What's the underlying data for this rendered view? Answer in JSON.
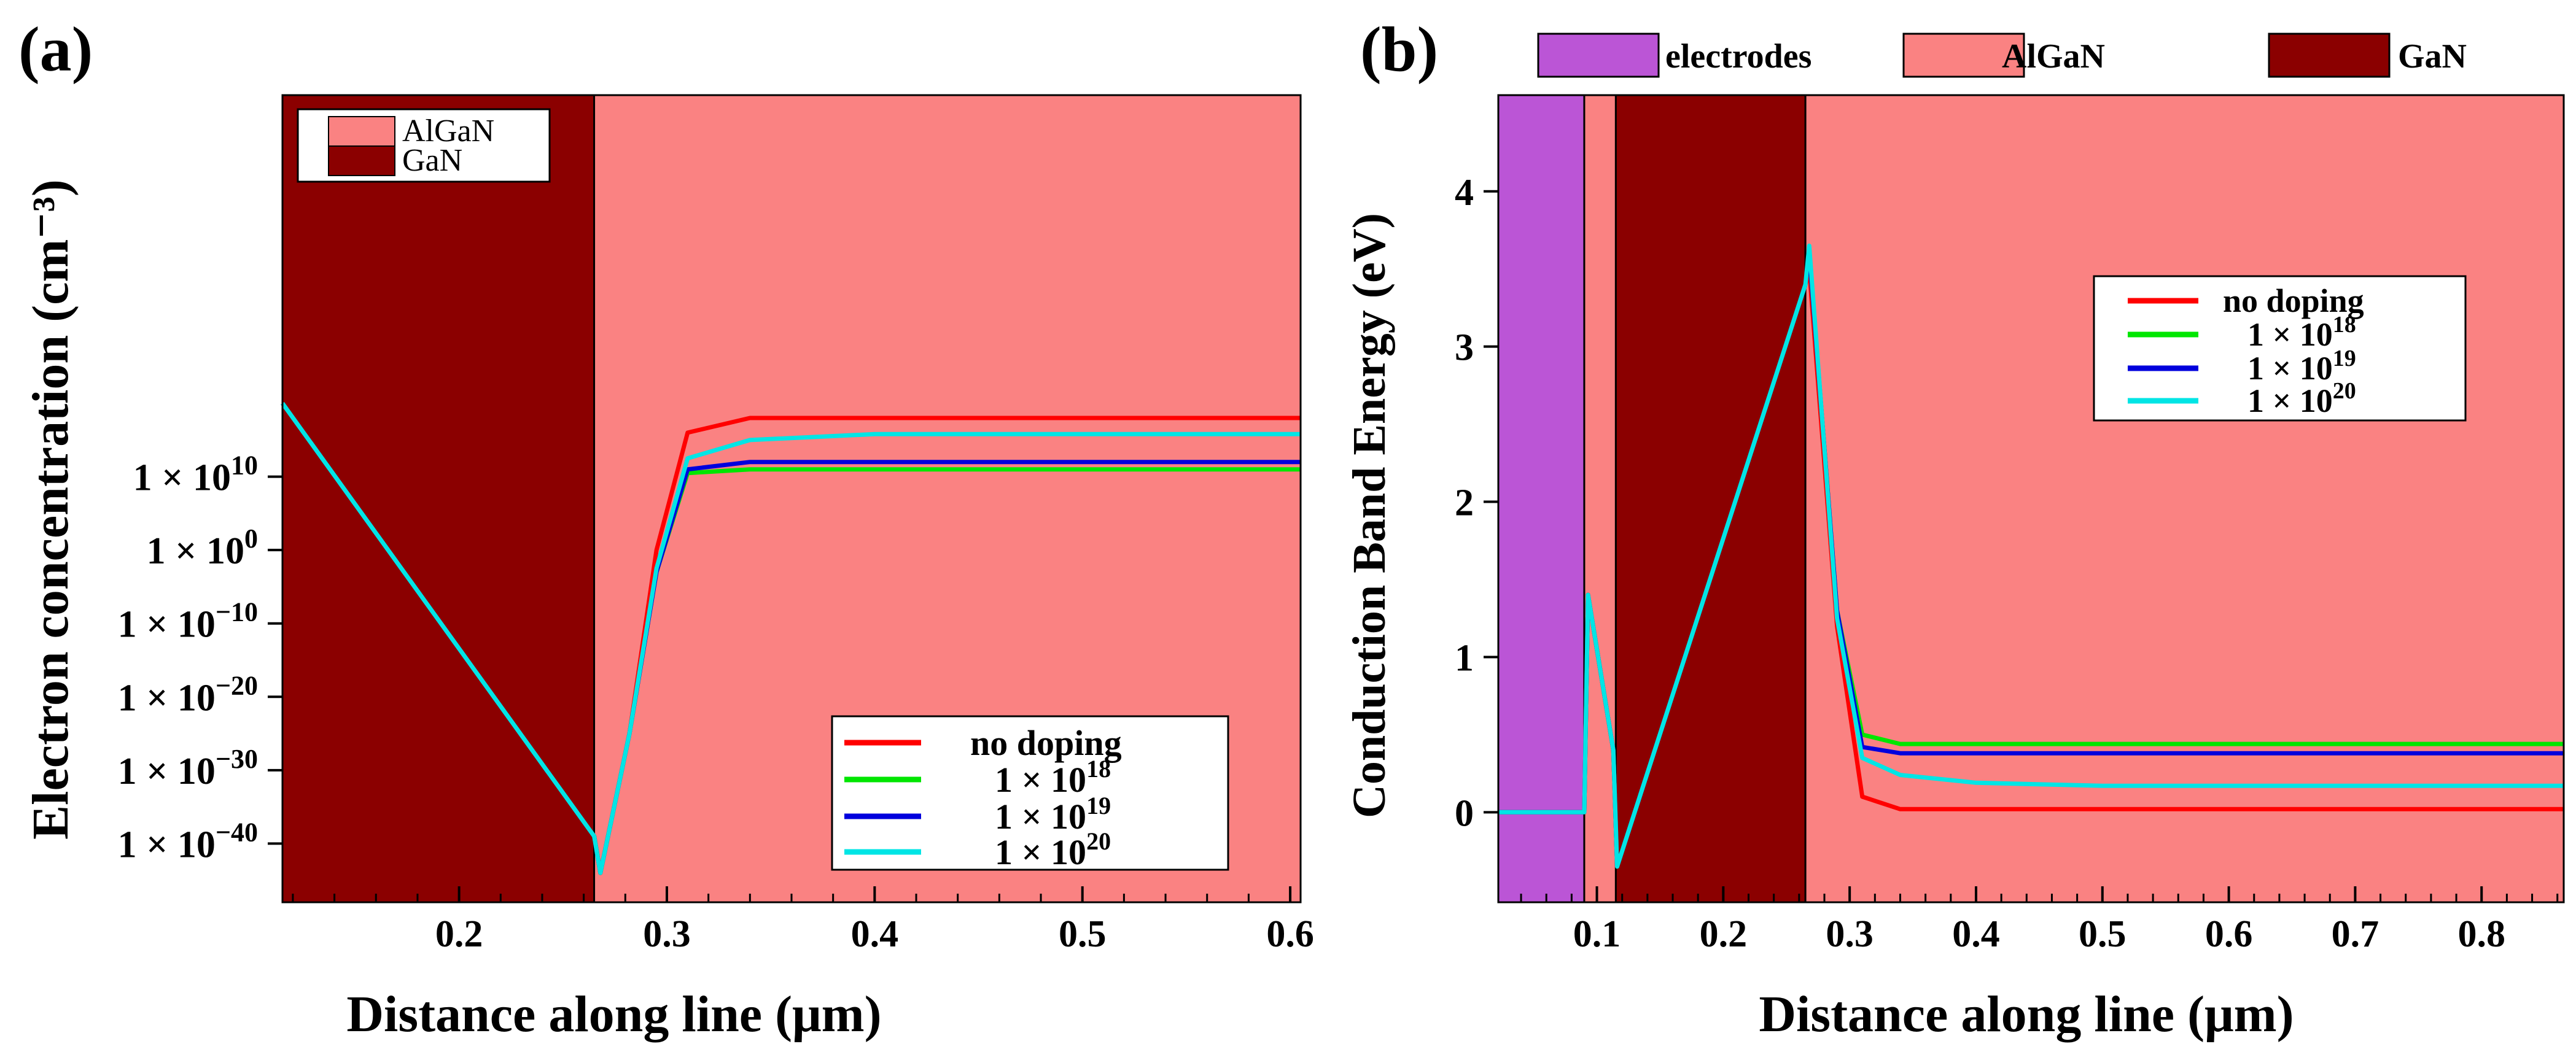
{
  "chart_data": [
    {
      "panel": "(a)",
      "type": "line",
      "title": "",
      "xlabel": "Distance along line (μm)",
      "ylabel": "Electron concentration (cm⁻³)",
      "yscale": "log",
      "xlim": [
        0.115,
        0.605
      ],
      "ylim": [
        -48,
        62
      ],
      "xticks": [
        0.2,
        0.3,
        0.4,
        0.5,
        0.6
      ],
      "xtick_labels": [
        "0.2",
        "0.3",
        "0.4",
        "0.5",
        "0.6"
      ],
      "yticks": [
        10,
        0,
        -10,
        -20,
        -30,
        -40
      ],
      "ytick_labels": [
        {
          "base": "1 × 10",
          "exp": "10"
        },
        {
          "base": "1 × 10",
          "exp": "0"
        },
        {
          "base": "1 × 10",
          "exp": "−10"
        },
        {
          "base": "1 × 10",
          "exp": "−20"
        },
        {
          "base": "1 × 10",
          "exp": "−30"
        },
        {
          "base": "1 × 10",
          "exp": "−40"
        }
      ],
      "regions": [
        {
          "material": "GaN",
          "x": [
            0.115,
            0.265
          ],
          "color": "#8b0000"
        },
        {
          "material": "AlGaN",
          "x": [
            0.265,
            0.605
          ],
          "color": "#fa8282"
        }
      ],
      "region_legend": [
        {
          "label": "AlGaN",
          "color": "#fa8282"
        },
        {
          "label": "GaN",
          "color": "#8b0000"
        }
      ],
      "legend": [
        {
          "label": "no doping",
          "sup": ""
        },
        {
          "label": "1 × 10",
          "sup": "18"
        },
        {
          "label": "1 × 10",
          "sup": "19"
        },
        {
          "label": "1 × 10",
          "sup": "20"
        }
      ],
      "legend_position": "lower-right",
      "x": [
        0.115,
        0.265,
        0.268,
        0.282,
        0.295,
        0.31,
        0.34,
        0.4,
        0.5,
        0.605
      ],
      "series": [
        {
          "name": "no doping",
          "color": "#ff0000",
          "log10_values": [
            20,
            -39,
            -44,
            -25,
            0,
            16,
            18,
            18,
            18,
            18
          ]
        },
        {
          "name": "1 × 10^18",
          "color": "#00e600",
          "log10_values": [
            20,
            -39,
            -44,
            -25,
            -3,
            10.5,
            11,
            11,
            11,
            11
          ]
        },
        {
          "name": "1 × 10^19",
          "color": "#0000dd",
          "log10_values": [
            20,
            -39,
            -44,
            -25,
            -3,
            11,
            12,
            12,
            12,
            12
          ]
        },
        {
          "name": "1 × 10^20",
          "color": "#00e5e5",
          "log10_values": [
            20,
            -39,
            -44,
            -25,
            -2.5,
            12.5,
            15,
            15.8,
            15.8,
            15.8
          ]
        }
      ]
    },
    {
      "panel": "(b)",
      "type": "line",
      "title": "",
      "xlabel": "Distance along line (μm)",
      "ylabel": "Conduction Band Energy (eV)",
      "xlim": [
        0.022,
        0.865
      ],
      "ylim": [
        -0.58,
        4.62
      ],
      "xticks": [
        0.1,
        0.2,
        0.3,
        0.4,
        0.5,
        0.6,
        0.7,
        0.8
      ],
      "xtick_labels": [
        "0.1",
        "0.2",
        "0.3",
        "0.4",
        "0.5",
        "0.6",
        "0.7",
        "0.8"
      ],
      "yticks": [
        0,
        1,
        2,
        3,
        4
      ],
      "ytick_labels": [
        "0",
        "1",
        "2",
        "3",
        "4"
      ],
      "regions": [
        {
          "material": "electrodes",
          "x": [
            0.022,
            0.09
          ],
          "color": "#bb55d6"
        },
        {
          "material": "AlGaN",
          "x": [
            0.09,
            0.115
          ],
          "color": "#fa8282"
        },
        {
          "material": "GaN",
          "x": [
            0.115,
            0.265
          ],
          "color": "#8b0000"
        },
        {
          "material": "AlGaN",
          "x": [
            0.265,
            0.865
          ],
          "color": "#fa8282"
        }
      ],
      "region_legend": [
        {
          "label": "electrodes",
          "color": "#bb55d6"
        },
        {
          "label": "AlGaN",
          "color": "#fa8282"
        },
        {
          "label": "GaN",
          "color": "#8b0000"
        }
      ],
      "legend": [
        {
          "label": "no doping",
          "sup": ""
        },
        {
          "label": "1 × 10",
          "sup": "18"
        },
        {
          "label": "1 × 10",
          "sup": "19"
        },
        {
          "label": "1 × 10",
          "sup": "20"
        }
      ],
      "legend_position": "upper-right",
      "x": [
        0.022,
        0.09,
        0.093,
        0.113,
        0.116,
        0.265,
        0.268,
        0.29,
        0.31,
        0.34,
        0.4,
        0.5,
        0.865
      ],
      "series": [
        {
          "name": "no doping",
          "color": "#ff0000",
          "values": [
            0,
            0,
            1.4,
            0.4,
            -0.35,
            3.4,
            3.5,
            1.2,
            0.1,
            0.02,
            0.02,
            0.02,
            0.02
          ]
        },
        {
          "name": "1 × 10^18",
          "color": "#00e600",
          "values": [
            0,
            0,
            1.4,
            0.4,
            -0.35,
            3.4,
            3.6,
            1.3,
            0.5,
            0.44,
            0.44,
            0.44,
            0.44
          ]
        },
        {
          "name": "1 × 10^19",
          "color": "#0000dd",
          "values": [
            0,
            0,
            1.4,
            0.4,
            -0.35,
            3.4,
            3.6,
            1.3,
            0.42,
            0.38,
            0.38,
            0.38,
            0.38
          ]
        },
        {
          "name": "1 × 10^20",
          "color": "#00e5e5",
          "values": [
            0,
            0,
            1.4,
            0.4,
            -0.35,
            3.4,
            3.65,
            1.25,
            0.35,
            0.24,
            0.19,
            0.17,
            0.17
          ]
        }
      ]
    }
  ]
}
